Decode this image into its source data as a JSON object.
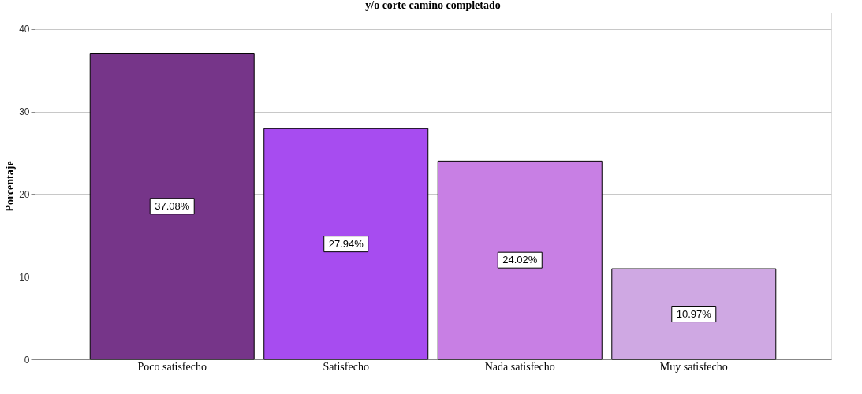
{
  "chart_data": {
    "type": "bar",
    "title": "y/o corte camino completado",
    "ylabel": "Porcentaje",
    "categories": [
      "Poco satisfecho",
      "Satisfecho",
      "Nada satisfecho",
      "Muy satisfecho"
    ],
    "values": [
      37.08,
      27.94,
      24.02,
      10.97
    ],
    "colors": [
      "#763589",
      "#a74cf0",
      "#c87fe4",
      "#cfa8e3"
    ],
    "value_labels": [
      "37.08%",
      "27.94%",
      "24.02%",
      "10.97%"
    ],
    "ylim": [
      0,
      42
    ],
    "yticks": [
      0,
      10,
      20,
      30,
      40
    ],
    "grid": "y"
  }
}
